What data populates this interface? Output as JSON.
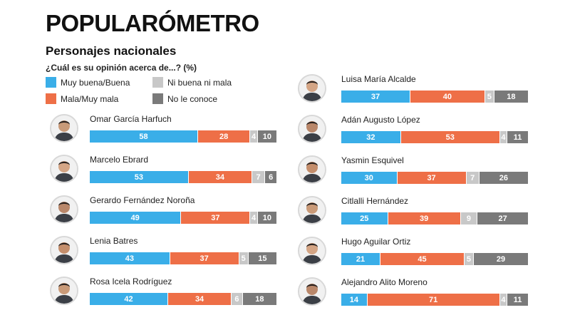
{
  "header": {
    "title": "POPULARÓMETRO",
    "subtitle": "Personajes nacionales",
    "question": "¿Cuál es su opinión acerca de...? (%)"
  },
  "legend": [
    {
      "label": "Muy buena/Buena",
      "color": "#3aaee8"
    },
    {
      "label": "Ni buena ni mala",
      "color": "#c8c8c8"
    },
    {
      "label": "Mala/Muy mala",
      "color": "#ee6f47"
    },
    {
      "label": "No le conoce",
      "color": "#7a7a7a"
    }
  ],
  "chart_data": {
    "type": "bar",
    "stacked": true,
    "orientation": "horizontal",
    "series": [
      {
        "name": "Muy buena/Buena",
        "color": "#3aaee8"
      },
      {
        "name": "Mala/Muy mala",
        "color": "#ee6f47"
      },
      {
        "name": "Ni buena ni mala",
        "color": "#c8c8c8"
      },
      {
        "name": "No le conoce",
        "color": "#7a7a7a"
      }
    ],
    "people": [
      {
        "name": "Omar García Harfuch",
        "values": [
          58,
          28,
          4,
          10
        ]
      },
      {
        "name": "Marcelo Ebrard",
        "values": [
          53,
          34,
          7,
          6
        ]
      },
      {
        "name": "Gerardo Fernández Noroña",
        "values": [
          49,
          37,
          4,
          10
        ]
      },
      {
        "name": "Lenia Batres",
        "values": [
          43,
          37,
          5,
          15
        ]
      },
      {
        "name": "Rosa Icela Rodríguez",
        "values": [
          42,
          34,
          6,
          18
        ]
      },
      {
        "name": "Luisa María Alcalde",
        "values": [
          37,
          40,
          5,
          18
        ]
      },
      {
        "name": "Adán Augusto López",
        "values": [
          32,
          53,
          4,
          11
        ]
      },
      {
        "name": "Yasmin Esquivel",
        "values": [
          30,
          37,
          7,
          26
        ]
      },
      {
        "name": "Citlalli Hernández",
        "values": [
          25,
          39,
          9,
          27
        ]
      },
      {
        "name": "Hugo Aguilar Ortiz",
        "values": [
          21,
          45,
          5,
          29
        ]
      },
      {
        "name": "Alejandro Alito Moreno",
        "values": [
          14,
          71,
          4,
          11
        ]
      }
    ]
  }
}
